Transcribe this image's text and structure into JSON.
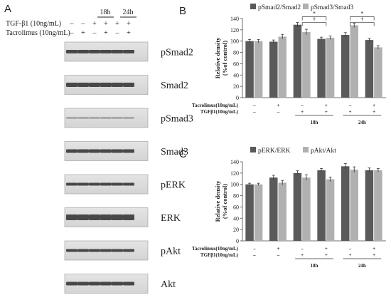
{
  "panel_a": {
    "letter": "A",
    "time_labels": [
      "18h",
      "24h"
    ],
    "conditions": [
      {
        "label": "TGF-β1 (10ng/mL)",
        "marks": [
          "–",
          "–",
          "+",
          "+",
          "+",
          "+"
        ]
      },
      {
        "label": "Tacrolimus (10ng/mL)",
        "marks": [
          "–",
          "+",
          "–",
          "+",
          "–",
          "+"
        ]
      }
    ],
    "blots": [
      "pSmad2",
      "Smad2",
      "pSmad3",
      "Smad3",
      "pERK",
      "ERK",
      "pAkt",
      "Akt"
    ]
  },
  "chart_data": [
    {
      "type": "bar",
      "panel": "B",
      "ylabel": "Relative density (%of control)",
      "ylim": [
        0,
        140
      ],
      "yticks": [
        0,
        20,
        40,
        60,
        80,
        100,
        120,
        140
      ],
      "categories": [
        "1",
        "2",
        "3",
        "4",
        "5",
        "6"
      ],
      "series": [
        {
          "name": "pSmad2/Smad2",
          "color": "#5a5a5a",
          "values": [
            100,
            99,
            129,
            104,
            111,
            102
          ],
          "errors": [
            3,
            3,
            4,
            3,
            4,
            3
          ]
        },
        {
          "name": "pSmad3/Smad3",
          "color": "#b0b0b0",
          "values": [
            100,
            108,
            116,
            106,
            128,
            89
          ],
          "errors": [
            3,
            4,
            5,
            3,
            4,
            3
          ]
        }
      ],
      "conditions": [
        {
          "label": "Tacrolimus(10ng/mL)",
          "marks": [
            "–",
            "+",
            "–",
            "+",
            "–",
            "+"
          ]
        },
        {
          "label": "TGFβ1(10ng/mL)",
          "marks": [
            "–",
            "–",
            "+",
            "+",
            "+",
            "+"
          ]
        }
      ],
      "time_groups": [
        "18h",
        "24h"
      ],
      "annotations": [
        {
          "symbol": "*",
          "between": [
            2,
            3
          ],
          "level": 143
        },
        {
          "symbol": "†",
          "between": [
            2,
            3
          ],
          "level": 133
        },
        {
          "symbol": "*",
          "between": [
            4,
            5
          ],
          "level": 143
        },
        {
          "symbol": "†",
          "between": [
            4,
            5
          ],
          "level": 133
        }
      ],
      "legend": "top",
      "grid": false
    },
    {
      "type": "bar",
      "panel": "C",
      "ylabel": "Relative density (%of control)",
      "ylim": [
        0,
        140
      ],
      "yticks": [
        0,
        20,
        40,
        60,
        80,
        100,
        120,
        140
      ],
      "categories": [
        "1",
        "2",
        "3",
        "4",
        "5",
        "6"
      ],
      "series": [
        {
          "name": "pERK/ERK",
          "color": "#5a5a5a",
          "values": [
            100,
            112,
            120,
            125,
            132,
            125
          ],
          "errors": [
            2,
            4,
            4,
            3,
            5,
            4
          ]
        },
        {
          "name": "pAkt/Akt",
          "color": "#b0b0b0",
          "values": [
            100,
            103,
            112,
            109,
            126,
            125
          ],
          "errors": [
            2,
            4,
            5,
            4,
            5,
            3
          ]
        }
      ],
      "conditions": [
        {
          "label": "Tacrolimus(10ng/mL)",
          "marks": [
            "–",
            "+",
            "–",
            "+",
            "–",
            "+"
          ]
        },
        {
          "label": "TGFβ1(10ng/mL)",
          "marks": [
            "–",
            "–",
            "+",
            "+",
            "+",
            "+"
          ]
        }
      ],
      "time_groups": [
        "18h",
        "24h"
      ],
      "annotations": [],
      "legend": "top",
      "grid": false
    }
  ]
}
